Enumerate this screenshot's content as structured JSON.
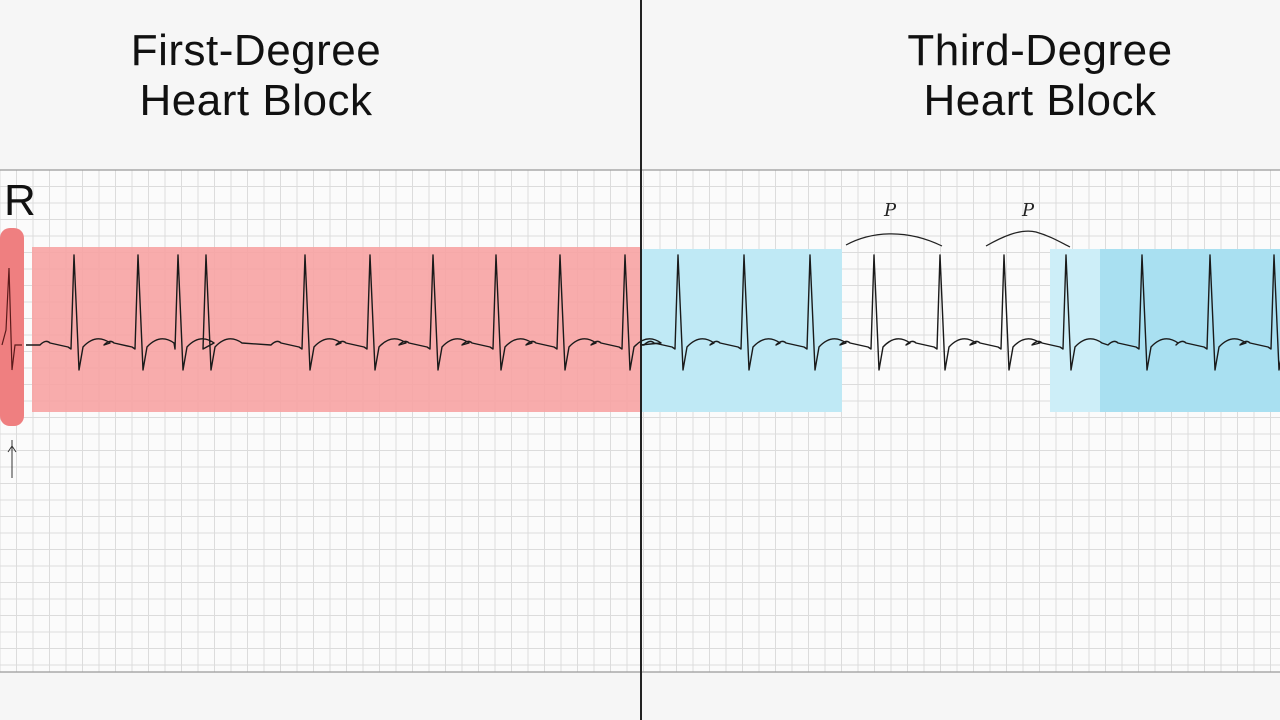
{
  "titles": {
    "left": {
      "line1": "First-Degree",
      "line2": "Heart Block"
    },
    "right": {
      "line1": "Third-Degree",
      "line2": "Heart Block"
    }
  },
  "r_label": "R",
  "p_labels": [
    "P",
    "P"
  ],
  "colors": {
    "background": "#f6f6f6",
    "grid_panel": "#fbfbfb",
    "grid_line": "#dcdcdc",
    "divider": "#222222",
    "red_band": "#f7a3a3",
    "red_marker": "#ef7f80",
    "blue_band": "#bfe9f5",
    "blue_band_dark": "#a9e0f1",
    "trace": "#1a1a1a"
  }
}
